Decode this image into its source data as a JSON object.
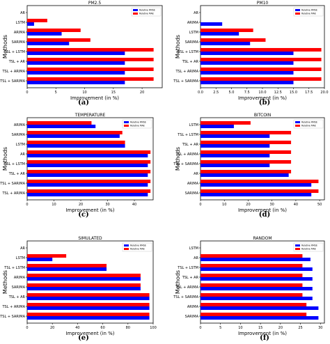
{
  "figure": {
    "legend_labels": [
      "Relative RMSE",
      "Relative MAE"
    ],
    "colors": {
      "rmse": "#0000ff",
      "mae": "#ff0000"
    }
  },
  "chart_data": [
    {
      "panel_label": "(a)",
      "type": "bar",
      "orientation": "horizontal",
      "title": "PM2.5",
      "xlabel": "Improvement (in %)",
      "ylabel": "Methods",
      "categories": [
        "AR",
        "LSTM",
        "ARIMA",
        "SARIMA",
        "TSL + LSTM",
        "TSL + AR",
        "TSL + ARIMA",
        "TSL + SARIMA"
      ],
      "series": [
        {
          "name": "Relative RMSE",
          "values": [
            0,
            1.2,
            6,
            7.3,
            17,
            17,
            17,
            17
          ]
        },
        {
          "name": "Relative MAE",
          "values": [
            0,
            3.5,
            9.3,
            11,
            22,
            22,
            22,
            22
          ]
        }
      ],
      "xlim": [
        0,
        23.5
      ],
      "xticks": [
        0,
        5,
        10,
        15,
        20
      ],
      "legend": "top-right",
      "grid": false
    },
    {
      "panel_label": "(b)",
      "type": "bar",
      "orientation": "horizontal",
      "title": "PM10",
      "xlabel": "Improvement (in %)",
      "ylabel": "Methods",
      "categories": [
        "AR",
        "ARIMA",
        "LSTM",
        "SARIMA",
        "TSL + LSTM",
        "TSL + AR",
        "TSL + ARIMA",
        "TSL + SARIMA"
      ],
      "series": [
        {
          "name": "Relative RMSE",
          "values": [
            0,
            3.5,
            6.2,
            8,
            15,
            15,
            15,
            15
          ]
        },
        {
          "name": "Relative MAE",
          "values": [
            0,
            0,
            8.5,
            10.5,
            19.5,
            19.5,
            19.5,
            19.5
          ]
        }
      ],
      "xlim": [
        0,
        20
      ],
      "xticks": [
        0.0,
        2.5,
        5.0,
        7.5,
        10.0,
        12.5,
        15.0,
        17.5,
        20.0
      ],
      "legend": "top-right",
      "grid": false
    },
    {
      "panel_label": "(c)",
      "type": "bar",
      "orientation": "horizontal",
      "title": "TEMPERATURE",
      "xlabel": "Improvement (in %)",
      "ylabel": "Methods",
      "categories": [
        "ARIMA",
        "SARIMA",
        "LSTM",
        "AR",
        "TSL + LSTM",
        "TSL + AR",
        "TSL + SARIMA",
        "TSL + ARIMA"
      ],
      "series": [
        {
          "name": "Relative RMSE",
          "values": [
            25.5,
            34.5,
            36.5,
            45,
            45,
            45,
            45,
            45
          ]
        },
        {
          "name": "Relative MAE",
          "values": [
            24,
            35.5,
            36.5,
            46,
            46,
            46,
            46,
            46
          ]
        }
      ],
      "xlim": [
        0,
        47
      ],
      "xticks": [
        0,
        10,
        20,
        30,
        40
      ],
      "legend": "top-right",
      "grid": false
    },
    {
      "panel_label": "(d)",
      "type": "bar",
      "orientation": "horizontal",
      "title": "BITCOIN",
      "xlabel": "Improvement (in %)",
      "ylabel": "Methods",
      "categories": [
        "LSTM",
        "TSL + LSTM",
        "TSL + AR",
        "TSL + ARIMA",
        "TSL + SARIMA",
        "AR",
        "ARIMA",
        "SARIMA"
      ],
      "series": [
        {
          "name": "Relative RMSE",
          "values": [
            14,
            29,
            29,
            29,
            29,
            37,
            46.5,
            46.5
          ]
        },
        {
          "name": "Relative MAE",
          "values": [
            21,
            38,
            38,
            38,
            38,
            38,
            49.5,
            49.5
          ]
        }
      ],
      "xlim": [
        0,
        52
      ],
      "xticks": [
        0,
        10,
        20,
        30,
        40,
        50
      ],
      "legend": "top-right",
      "grid": false
    },
    {
      "panel_label": "(e)",
      "type": "bar",
      "orientation": "horizontal",
      "title": "SIMULATED",
      "xlabel": "Improvement (in %)",
      "ylabel": "Methods",
      "categories": [
        "AR",
        "LSTM",
        "TSL + LSTM",
        "ARIMA",
        "SARIMA",
        "TSL + AR",
        "TSL + ARIMA",
        "TSL + SARIMA"
      ],
      "series": [
        {
          "name": "Relative RMSE",
          "values": [
            0,
            20,
            63,
            90,
            90,
            97,
            97,
            97
          ]
        },
        {
          "name": "Relative MAE",
          "values": [
            0,
            31,
            63,
            90,
            90,
            97,
            97,
            97
          ]
        }
      ],
      "xlim": [
        0,
        100
      ],
      "xticks": [
        0,
        20,
        40,
        60,
        80,
        100
      ],
      "legend": "top-right",
      "grid": false
    },
    {
      "panel_label": "(f)",
      "type": "bar",
      "orientation": "horizontal",
      "title": "RANDOM",
      "xlabel": "Improvement (in %)",
      "ylabel": "Methods",
      "categories": [
        "LSTM",
        "AR",
        "TSL + LSTM",
        "TSL + AR",
        "TSL + ARIMA",
        "TSL + SARIMA",
        "ARIMA",
        "SARIMA"
      ],
      "series": [
        {
          "name": "Relative RMSE",
          "values": [
            0,
            27.5,
            28,
            28,
            28,
            28,
            29.5,
            29.5
          ]
        },
        {
          "name": "Relative MAE",
          "values": [
            0,
            25.5,
            25.5,
            25.5,
            25.5,
            25.5,
            26.5,
            26.5
          ]
        }
      ],
      "xlim": [
        0,
        31
      ],
      "xticks": [
        0,
        5,
        10,
        15,
        20,
        25,
        30
      ],
      "legend": "top-right",
      "grid": false
    }
  ]
}
